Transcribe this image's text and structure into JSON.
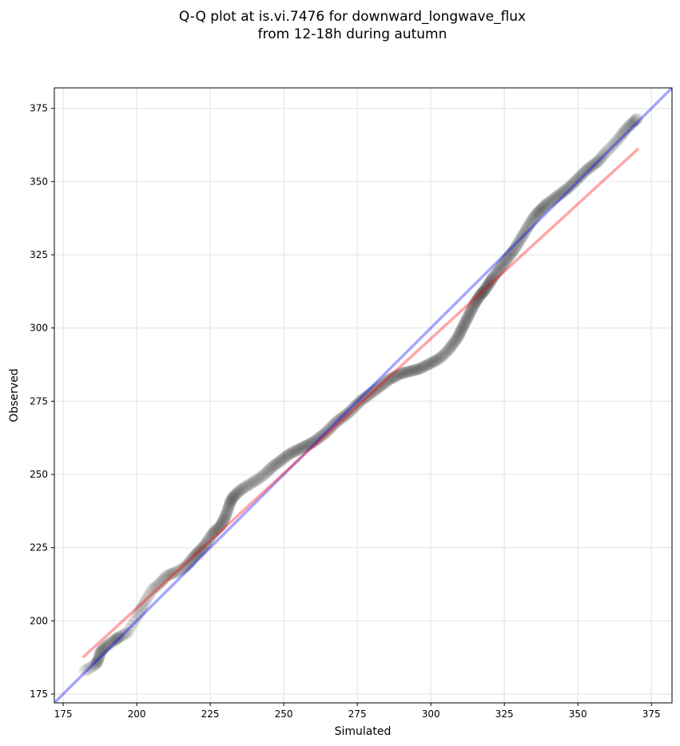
{
  "chart_data": {
    "type": "scatter",
    "title_lines": [
      "Q-Q plot at is.vi.7476 for downward_longwave_flux",
      "from 12-18h during autumn"
    ],
    "xlabel": "Simulated",
    "ylabel": "Observed",
    "xlim": [
      172,
      382
    ],
    "ylim": [
      172,
      382
    ],
    "xticks": [
      175,
      200,
      225,
      250,
      275,
      300,
      325,
      350,
      375
    ],
    "yticks": [
      175,
      200,
      225,
      250,
      275,
      300,
      325,
      350,
      375
    ],
    "grid": true,
    "colors": {
      "points": "#000000",
      "one_to_one": "#0000ff",
      "fit": "#ff0000"
    },
    "one_to_one_line": {
      "slope": 1,
      "intercept": 0
    },
    "fit_line": {
      "x": [
        181.7,
        370.6
      ],
      "y": [
        187.5,
        361.3
      ]
    },
    "series": [
      {
        "x": [
          182.4,
          185.9,
          186.9,
          187.5,
          188.6,
          190.4,
          192.6,
          194.1,
          196.9,
          200.4,
          202.5,
          205.2,
          208.0,
          210.4,
          213.0,
          216.0,
          218.0,
          219.5,
          221.0,
          222.5,
          224.0,
          225.6,
          227.0,
          228.6,
          229.6,
          230.5,
          231.3,
          232.0,
          233.0,
          234.5,
          236.5,
          239.0,
          241.5,
          244.0,
          246.0,
          248.0,
          250.0,
          252.0,
          254.0,
          256.0,
          258.0,
          260.0,
          262.0,
          264.0,
          266.0,
          268.0,
          270.0,
          272.0,
          274.0,
          276.0,
          278.0,
          280.0,
          282.0,
          284.0,
          286.0,
          288.0,
          290.0,
          292.0,
          294.0,
          296.0,
          298.0,
          300.0,
          302.0,
          304.0,
          306.0,
          307.5,
          309.0,
          310.0,
          311.0,
          312.0,
          313.0,
          314.0,
          315.0,
          316.0,
          317.0,
          318.0,
          319.0,
          320.0,
          321.0,
          322.5,
          324.0,
          325.5,
          327.0,
          328.5,
          330.0,
          331.5,
          333.0,
          334.5,
          336.0,
          337.5,
          339.0,
          341.0,
          343.0,
          345.0,
          347.0,
          349.0,
          351.0,
          353.0,
          355.0,
          357.0,
          359.0,
          362.0,
          364.5,
          366.5,
          368.5,
          370.2
        ],
        "y": [
          183.0,
          185.0,
          186.5,
          189.0,
          190.5,
          192.0,
          193.5,
          194.5,
          196.0,
          202.0,
          206.0,
          210.5,
          213.0,
          215.5,
          216.5,
          218.0,
          220.0,
          222.0,
          223.5,
          225.0,
          227.0,
          229.5,
          231.0,
          232.5,
          234.5,
          236.5,
          239.0,
          241.0,
          242.5,
          244.0,
          245.5,
          247.0,
          248.5,
          250.5,
          252.5,
          254.0,
          255.5,
          257.0,
          258.0,
          259.0,
          260.0,
          261.0,
          262.5,
          264.0,
          266.0,
          268.0,
          269.5,
          271.0,
          273.0,
          275.0,
          276.5,
          278.0,
          279.5,
          281.0,
          282.5,
          283.5,
          284.5,
          285.0,
          285.5,
          286.0,
          287.0,
          288.0,
          289.0,
          290.5,
          292.5,
          294.5,
          296.5,
          298.5,
          300.5,
          302.5,
          304.5,
          306.5,
          308.5,
          310.0,
          311.5,
          312.5,
          314.0,
          315.5,
          317.0,
          319.0,
          321.0,
          323.0,
          325.0,
          327.0,
          329.5,
          332.0,
          334.5,
          337.0,
          339.0,
          340.5,
          342.0,
          343.5,
          345.0,
          346.5,
          348.0,
          350.0,
          352.0,
          354.0,
          355.5,
          357.0,
          359.5,
          362.5,
          365.5,
          368.0,
          370.0,
          371.5
        ]
      }
    ]
  }
}
